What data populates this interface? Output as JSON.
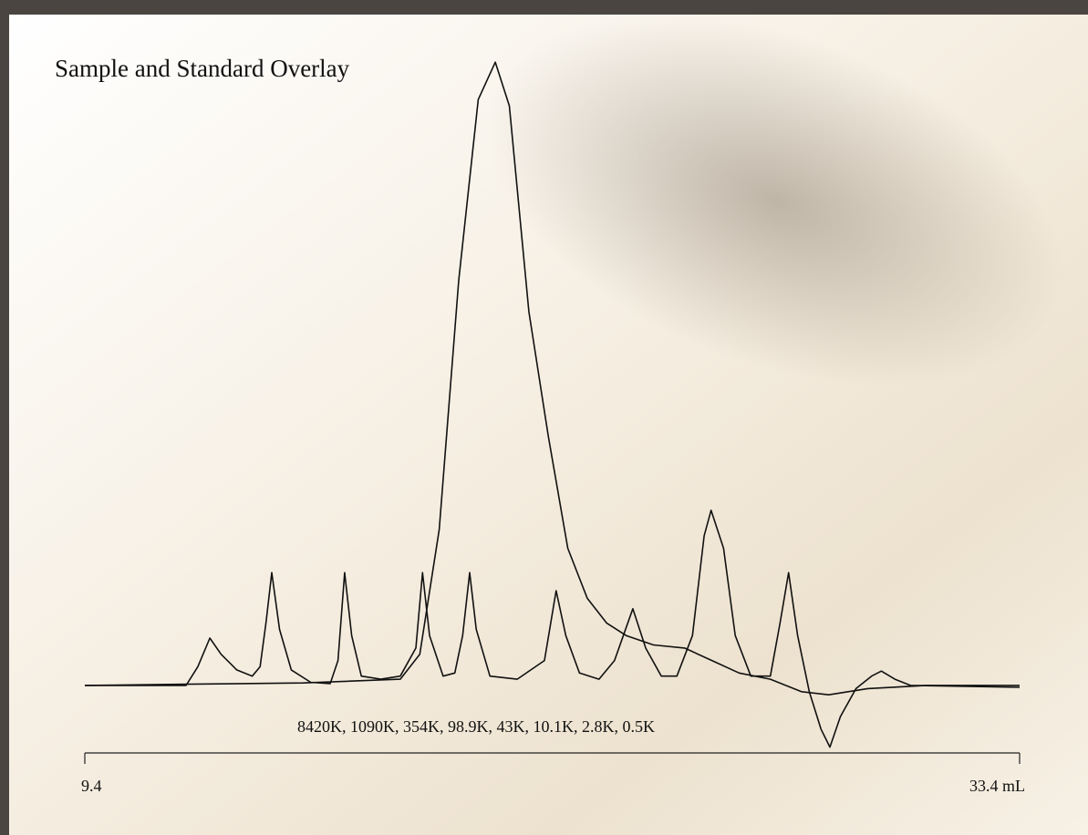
{
  "chart_data": {
    "type": "line",
    "title": "Sample and Standard Overlay",
    "annotation": "8420K, 1090K, 354K, 98.9K, 43K, 10.1K, 2.8K, 0.5K",
    "xlim": [
      9.4,
      33.4
    ],
    "xticks": [
      9.4,
      {
        "value": 33.4,
        "label": "33.4 mL"
      }
    ],
    "ylim": [
      -12,
      105
    ],
    "series": [
      {
        "color": "#111111",
        "x": [
          9.4,
          12.0,
          12.3,
          12.61,
          12.9,
          13.3,
          13.7,
          13.9,
          14.05,
          14.2,
          14.4,
          14.7,
          15.2,
          15.7,
          15.9,
          16.07,
          16.25,
          16.5,
          17.0,
          17.5,
          17.9,
          18.07,
          18.25,
          18.6,
          18.9,
          19.1,
          19.28,
          19.45,
          19.8,
          20.5,
          21.2,
          21.5,
          21.75,
          22.1,
          22.6,
          23.0,
          23.47,
          23.8,
          24.2,
          24.6,
          25.0,
          25.3,
          25.48,
          25.8,
          26.1,
          26.5,
          27.0,
          27.25,
          27.47,
          27.7,
          28.0,
          28.3,
          28.53,
          28.8,
          29.2,
          29.6,
          29.85,
          30.2,
          30.6,
          33.4
        ],
        "values": [
          0,
          0,
          3,
          7.6,
          5,
          2.5,
          1.5,
          3,
          10,
          18.1,
          9,
          2.5,
          0.5,
          0.3,
          4,
          18.1,
          8,
          1.5,
          1,
          1.5,
          6,
          18.1,
          8,
          1.5,
          2,
          8,
          18.1,
          9,
          1.5,
          1,
          4,
          15.2,
          8,
          2,
          1,
          4,
          12.3,
          6,
          1.5,
          1.5,
          8,
          24,
          28.1,
          22,
          8,
          1.5,
          1.5,
          10,
          18.1,
          8,
          -1,
          -7,
          -9.9,
          -5,
          -0.5,
          1.5,
          2.3,
          1,
          0,
          -0.3
        ]
      },
      {
        "color": "#111111",
        "x": [
          9.4,
          12.0,
          15.0,
          17.5,
          18.0,
          18.5,
          19.0,
          19.5,
          19.94,
          20.3,
          20.8,
          21.3,
          21.8,
          22.3,
          22.8,
          23.3,
          24.0,
          24.8,
          25.5,
          26.2,
          27.0,
          27.8,
          28.5,
          29.5,
          31.0,
          33.4
        ],
        "values": [
          0,
          0.2,
          0.4,
          1,
          5,
          25,
          65,
          94,
          100,
          93,
          60,
          40,
          22,
          14,
          10,
          8,
          6.5,
          6,
          4,
          2,
          1,
          -1,
          -1.5,
          -0.5,
          0,
          0
        ]
      }
    ]
  }
}
